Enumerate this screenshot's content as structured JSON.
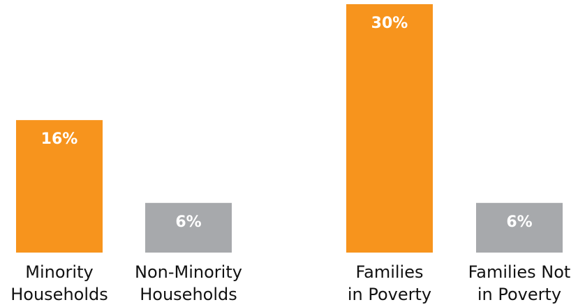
{
  "chart_data": {
    "type": "bar",
    "title": "",
    "xlabel": "",
    "ylabel": "",
    "categories": [
      [
        "Minority",
        "Households"
      ],
      [
        "Non-Minority",
        "Households"
      ],
      [
        "Families",
        "in Poverty"
      ],
      [
        "Families Not",
        "in Poverty"
      ]
    ],
    "values": [
      16,
      6,
      30,
      6
    ],
    "value_labels": [
      "16%",
      "6%",
      "30%",
      "6%"
    ],
    "bar_colors": [
      "#f7941d",
      "#a7a9ac",
      "#f7941d",
      "#a7a9ac"
    ],
    "ylim": [
      0,
      30
    ],
    "grid": false,
    "legend": "none"
  }
}
